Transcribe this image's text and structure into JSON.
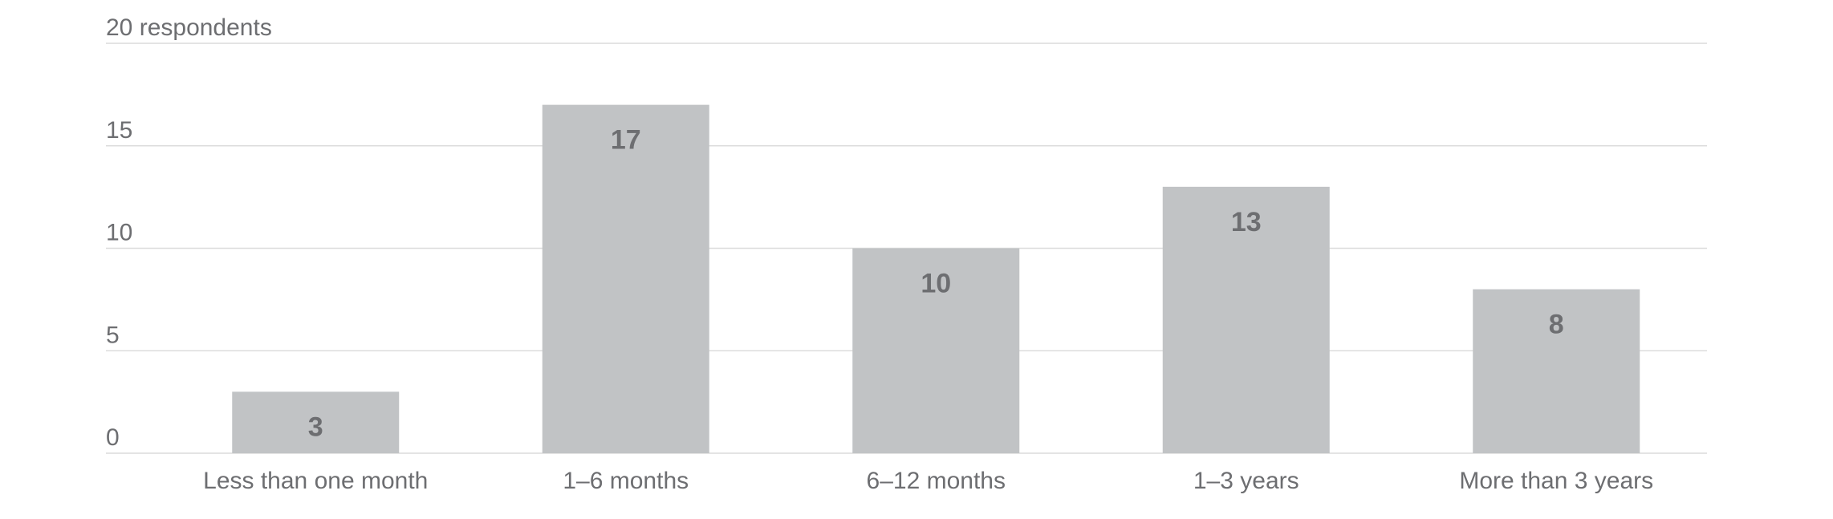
{
  "chart_data": {
    "type": "bar",
    "categories": [
      "Less than one month",
      "1–6 months",
      "6–12 months",
      "1–3 years",
      "More than 3 years"
    ],
    "values": [
      3,
      17,
      10,
      13,
      8
    ],
    "color": "#c1c3c5",
    "ylim": [
      0,
      20
    ],
    "yticks": [
      0,
      5,
      10,
      15,
      {
        "value": 20,
        "label": "20 respondents"
      }
    ],
    "grid": true
  }
}
